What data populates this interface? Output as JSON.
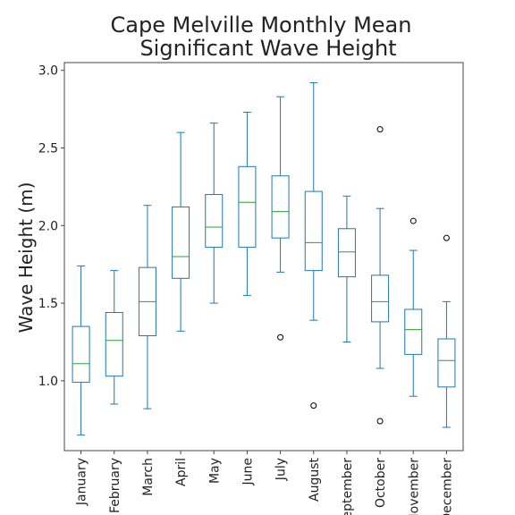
{
  "chart_data": {
    "type": "boxplot",
    "title_lines": [
      "Cape Melville Monthly Mean",
      "Significant Wave Height"
    ],
    "xlabel": "",
    "ylabel": "Wave Height (m)",
    "ylim": [
      0.55,
      3.05
    ],
    "yticks": [
      1.0,
      1.5,
      2.0,
      2.5,
      3.0
    ],
    "ytick_labels": [
      "1.0",
      "1.5",
      "2.0",
      "2.5",
      "3.0"
    ],
    "grid": false,
    "categories": [
      "January",
      "February",
      "March",
      "April",
      "May",
      "June",
      "July",
      "August",
      "September",
      "October",
      "November",
      "December"
    ],
    "boxes": [
      {
        "whislo": 0.65,
        "q1": 0.99,
        "med": 1.11,
        "q3": 1.35,
        "whishi": 1.74,
        "fliers": []
      },
      {
        "whislo": 0.85,
        "q1": 1.03,
        "med": 1.26,
        "q3": 1.44,
        "whishi": 1.71,
        "fliers": []
      },
      {
        "whislo": 0.82,
        "q1": 1.29,
        "med": 1.51,
        "q3": 1.73,
        "whishi": 2.13,
        "fliers": []
      },
      {
        "whislo": 1.32,
        "q1": 1.66,
        "med": 1.8,
        "q3": 2.12,
        "whishi": 2.6,
        "fliers": []
      },
      {
        "whislo": 1.5,
        "q1": 1.86,
        "med": 1.99,
        "q3": 2.2,
        "whishi": 2.66,
        "fliers": []
      },
      {
        "whislo": 1.55,
        "q1": 1.86,
        "med": 2.15,
        "q3": 2.38,
        "whishi": 2.73,
        "fliers": []
      },
      {
        "whislo": 1.7,
        "q1": 1.92,
        "med": 2.09,
        "q3": 2.32,
        "whishi": 2.83,
        "fliers": [
          1.28
        ]
      },
      {
        "whislo": 1.39,
        "q1": 1.71,
        "med": 1.89,
        "q3": 2.22,
        "whishi": 2.92,
        "fliers": [
          0.84
        ]
      },
      {
        "whislo": 1.25,
        "q1": 1.67,
        "med": 1.83,
        "q3": 1.98,
        "whishi": 2.19,
        "fliers": []
      },
      {
        "whislo": 1.08,
        "q1": 1.38,
        "med": 1.51,
        "q3": 1.68,
        "whishi": 2.11,
        "fliers": [
          0.74,
          2.62
        ]
      },
      {
        "whislo": 0.9,
        "q1": 1.17,
        "med": 1.33,
        "q3": 1.46,
        "whishi": 1.84,
        "fliers": [
          2.03
        ]
      },
      {
        "whislo": 0.7,
        "q1": 0.96,
        "med": 1.13,
        "q3": 1.27,
        "whishi": 1.51,
        "fliers": [
          1.92
        ]
      }
    ],
    "colors": {
      "box": "#1f77b4",
      "median": "#2ca02c",
      "whisker": "#1f77b4",
      "flier": "#000000",
      "frame": "#444444",
      "text": "#222222"
    }
  }
}
